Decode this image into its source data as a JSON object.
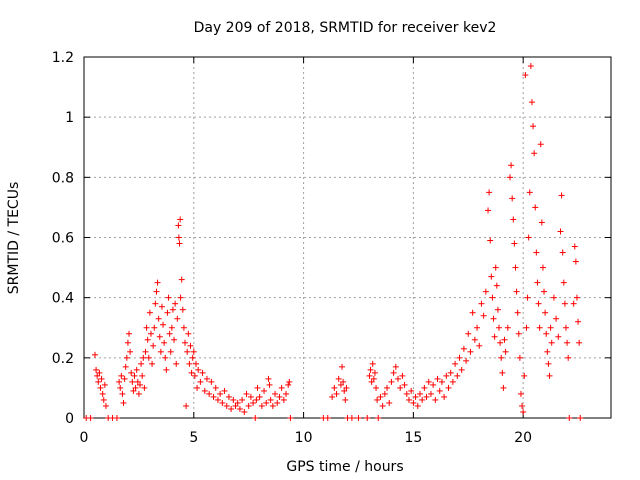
{
  "chart_data": {
    "type": "scatter",
    "title": "Day 209 of 2018, SRMTID for receiver kev2",
    "xlabel": "GPS time / hours",
    "ylabel": "SRMTID / TECUs",
    "xlim": [
      0,
      24
    ],
    "ylim": [
      0,
      1.2
    ],
    "xticks": [
      0,
      5,
      10,
      15,
      20
    ],
    "xtick_labels": [
      "0",
      "5",
      "10",
      "15",
      "20"
    ],
    "yticks": [
      0,
      0.2,
      0.4,
      0.6,
      0.8,
      1.0,
      1.2
    ],
    "ytick_labels": [
      "0",
      "0.2",
      "0.4",
      "0.6",
      "0.8",
      "1",
      "1.2"
    ],
    "grid": true,
    "marker": "+",
    "color": "#ff0000",
    "series": [
      {
        "name": "SRMTID",
        "points": [
          [
            0.1,
            0.0
          ],
          [
            0.3,
            0.0
          ],
          [
            0.5,
            0.21
          ],
          [
            0.55,
            0.16
          ],
          [
            0.6,
            0.14
          ],
          [
            0.65,
            0.12
          ],
          [
            0.7,
            0.15
          ],
          [
            0.75,
            0.1
          ],
          [
            0.8,
            0.13
          ],
          [
            0.85,
            0.08
          ],
          [
            0.9,
            0.06
          ],
          [
            0.95,
            0.11
          ],
          [
            1.0,
            0.04
          ],
          [
            1.1,
            0.0
          ],
          [
            1.3,
            0.0
          ],
          [
            1.5,
            0.0
          ],
          [
            1.6,
            0.12
          ],
          [
            1.65,
            0.1
          ],
          [
            1.7,
            0.14
          ],
          [
            1.75,
            0.08
          ],
          [
            1.8,
            0.05
          ],
          [
            1.85,
            0.13
          ],
          [
            1.9,
            0.17
          ],
          [
            1.95,
            0.2
          ],
          [
            2.0,
            0.25
          ],
          [
            2.05,
            0.28
          ],
          [
            2.1,
            0.22
          ],
          [
            2.15,
            0.15
          ],
          [
            2.2,
            0.12
          ],
          [
            2.25,
            0.09
          ],
          [
            2.3,
            0.14
          ],
          [
            2.35,
            0.1
          ],
          [
            2.4,
            0.16
          ],
          [
            2.45,
            0.12
          ],
          [
            2.5,
            0.08
          ],
          [
            2.55,
            0.11
          ],
          [
            2.6,
            0.18
          ],
          [
            2.65,
            0.14
          ],
          [
            2.7,
            0.2
          ],
          [
            2.75,
            0.1
          ],
          [
            2.8,
            0.22
          ],
          [
            2.85,
            0.3
          ],
          [
            2.9,
            0.26
          ],
          [
            2.95,
            0.2
          ],
          [
            3.0,
            0.35
          ],
          [
            3.05,
            0.28
          ],
          [
            3.1,
            0.18
          ],
          [
            3.15,
            0.24
          ],
          [
            3.2,
            0.3
          ],
          [
            3.25,
            0.38
          ],
          [
            3.3,
            0.42
          ],
          [
            3.35,
            0.45
          ],
          [
            3.4,
            0.33
          ],
          [
            3.45,
            0.27
          ],
          [
            3.5,
            0.22
          ],
          [
            3.55,
            0.37
          ],
          [
            3.6,
            0.31
          ],
          [
            3.65,
            0.25
          ],
          [
            3.7,
            0.2
          ],
          [
            3.75,
            0.16
          ],
          [
            3.8,
            0.35
          ],
          [
            3.85,
            0.4
          ],
          [
            3.9,
            0.28
          ],
          [
            3.95,
            0.22
          ],
          [
            4.0,
            0.3
          ],
          [
            4.05,
            0.36
          ],
          [
            4.1,
            0.26
          ],
          [
            4.15,
            0.38
          ],
          [
            4.2,
            0.18
          ],
          [
            4.25,
            0.33
          ],
          [
            4.3,
            0.64
          ],
          [
            4.32,
            0.6
          ],
          [
            4.35,
            0.58
          ],
          [
            4.38,
            0.66
          ],
          [
            4.4,
            0.4
          ],
          [
            4.45,
            0.46
          ],
          [
            4.5,
            0.36
          ],
          [
            4.55,
            0.3
          ],
          [
            4.6,
            0.25
          ],
          [
            4.65,
            0.04
          ],
          [
            4.7,
            0.22
          ],
          [
            4.75,
            0.28
          ],
          [
            4.8,
            0.18
          ],
          [
            4.85,
            0.24
          ],
          [
            4.9,
            0.15
          ],
          [
            4.95,
            0.2
          ],
          [
            5.0,
            0.22
          ],
          [
            5.05,
            0.14
          ],
          [
            5.1,
            0.18
          ],
          [
            5.15,
            0.1
          ],
          [
            5.2,
            0.16
          ],
          [
            5.3,
            0.12
          ],
          [
            5.4,
            0.15
          ],
          [
            5.5,
            0.09
          ],
          [
            5.6,
            0.13
          ],
          [
            5.7,
            0.08
          ],
          [
            5.8,
            0.12
          ],
          [
            5.9,
            0.07
          ],
          [
            6.0,
            0.1
          ],
          [
            6.1,
            0.06
          ],
          [
            6.2,
            0.08
          ],
          [
            6.3,
            0.05
          ],
          [
            6.4,
            0.09
          ],
          [
            6.5,
            0.04
          ],
          [
            6.6,
            0.07
          ],
          [
            6.7,
            0.03
          ],
          [
            6.8,
            0.06
          ],
          [
            6.9,
            0.04
          ],
          [
            7.0,
            0.05
          ],
          [
            7.1,
            0.03
          ],
          [
            7.2,
            0.06
          ],
          [
            7.3,
            0.02
          ],
          [
            7.4,
            0.08
          ],
          [
            7.5,
            0.04
          ],
          [
            7.6,
            0.07
          ],
          [
            7.7,
            0.05
          ],
          [
            7.8,
            0.0
          ],
          [
            7.85,
            0.06
          ],
          [
            7.9,
            0.1
          ],
          [
            8.0,
            0.07
          ],
          [
            8.1,
            0.04
          ],
          [
            8.2,
            0.09
          ],
          [
            8.3,
            0.05
          ],
          [
            8.4,
            0.13
          ],
          [
            8.45,
            0.11
          ],
          [
            8.5,
            0.06
          ],
          [
            8.6,
            0.04
          ],
          [
            8.7,
            0.08
          ],
          [
            8.8,
            0.05
          ],
          [
            8.9,
            0.07
          ],
          [
            9.0,
            0.1
          ],
          [
            9.1,
            0.06
          ],
          [
            9.2,
            0.08
          ],
          [
            9.3,
            0.11
          ],
          [
            9.35,
            0.12
          ],
          [
            9.4,
            0.0
          ],
          [
            10.9,
            0.0
          ],
          [
            11.1,
            0.0
          ],
          [
            11.3,
            0.07
          ],
          [
            11.4,
            0.1
          ],
          [
            11.5,
            0.08
          ],
          [
            11.6,
            0.13
          ],
          [
            11.7,
            0.11
          ],
          [
            11.75,
            0.17
          ],
          [
            11.8,
            0.12
          ],
          [
            11.85,
            0.09
          ],
          [
            11.9,
            0.06
          ],
          [
            11.95,
            0.1
          ],
          [
            12.0,
            0.0
          ],
          [
            12.2,
            0.0
          ],
          [
            12.5,
            0.0
          ],
          [
            12.9,
            0.0
          ],
          [
            13.0,
            0.14
          ],
          [
            13.05,
            0.16
          ],
          [
            13.1,
            0.12
          ],
          [
            13.15,
            0.18
          ],
          [
            13.2,
            0.13
          ],
          [
            13.25,
            0.15
          ],
          [
            13.3,
            0.1
          ],
          [
            13.35,
            0.06
          ],
          [
            13.4,
            0.0
          ],
          [
            13.5,
            0.07
          ],
          [
            13.6,
            0.04
          ],
          [
            13.7,
            0.08
          ],
          [
            13.8,
            0.1
          ],
          [
            13.9,
            0.05
          ],
          [
            14.0,
            0.12
          ],
          [
            14.1,
            0.15
          ],
          [
            14.2,
            0.17
          ],
          [
            14.3,
            0.13
          ],
          [
            14.4,
            0.1
          ],
          [
            14.5,
            0.14
          ],
          [
            14.6,
            0.11
          ],
          [
            14.7,
            0.08
          ],
          [
            14.8,
            0.06
          ],
          [
            14.9,
            0.09
          ],
          [
            15.0,
            0.05
          ],
          [
            15.1,
            0.07
          ],
          [
            15.2,
            0.04
          ],
          [
            15.3,
            0.08
          ],
          [
            15.4,
            0.06
          ],
          [
            15.5,
            0.1
          ],
          [
            15.6,
            0.07
          ],
          [
            15.7,
            0.12
          ],
          [
            15.8,
            0.08
          ],
          [
            15.9,
            0.11
          ],
          [
            16.0,
            0.06
          ],
          [
            16.1,
            0.13
          ],
          [
            16.2,
            0.09
          ],
          [
            16.3,
            0.12
          ],
          [
            16.4,
            0.07
          ],
          [
            16.5,
            0.14
          ],
          [
            16.6,
            0.1
          ],
          [
            16.7,
            0.15
          ],
          [
            16.8,
            0.12
          ],
          [
            16.9,
            0.18
          ],
          [
            17.0,
            0.14
          ],
          [
            17.1,
            0.2
          ],
          [
            17.2,
            0.16
          ],
          [
            17.3,
            0.23
          ],
          [
            17.4,
            0.19
          ],
          [
            17.5,
            0.28
          ],
          [
            17.6,
            0.22
          ],
          [
            17.7,
            0.35
          ],
          [
            17.8,
            0.26
          ],
          [
            17.9,
            0.3
          ],
          [
            18.0,
            0.24
          ],
          [
            18.1,
            0.38
          ],
          [
            18.2,
            0.34
          ],
          [
            18.3,
            0.42
          ],
          [
            18.4,
            0.69
          ],
          [
            18.45,
            0.75
          ],
          [
            18.5,
            0.59
          ],
          [
            18.55,
            0.47
          ],
          [
            18.6,
            0.4
          ],
          [
            18.65,
            0.33
          ],
          [
            18.7,
            0.27
          ],
          [
            18.75,
            0.5
          ],
          [
            18.8,
            0.44
          ],
          [
            18.85,
            0.36
          ],
          [
            18.9,
            0.3
          ],
          [
            18.95,
            0.25
          ],
          [
            19.0,
            0.2
          ],
          [
            19.05,
            0.15
          ],
          [
            19.1,
            0.1
          ],
          [
            19.15,
            0.26
          ],
          [
            19.2,
            0.22
          ],
          [
            19.3,
            0.3
          ],
          [
            19.4,
            0.8
          ],
          [
            19.45,
            0.84
          ],
          [
            19.5,
            0.73
          ],
          [
            19.55,
            0.66
          ],
          [
            19.6,
            0.58
          ],
          [
            19.65,
            0.5
          ],
          [
            19.7,
            0.42
          ],
          [
            19.75,
            0.35
          ],
          [
            19.8,
            0.28
          ],
          [
            19.85,
            0.2
          ],
          [
            19.9,
            0.08
          ],
          [
            19.95,
            0.04
          ],
          [
            20.0,
            0.02
          ],
          [
            20.05,
            0.14
          ],
          [
            20.1,
            1.14
          ],
          [
            20.15,
            0.3
          ],
          [
            20.2,
            0.4
          ],
          [
            20.25,
            0.6
          ],
          [
            20.3,
            0.75
          ],
          [
            20.35,
            1.17
          ],
          [
            20.4,
            1.05
          ],
          [
            20.45,
            0.97
          ],
          [
            20.5,
            0.88
          ],
          [
            20.55,
            0.7
          ],
          [
            20.6,
            0.55
          ],
          [
            20.65,
            0.45
          ],
          [
            20.7,
            0.38
          ],
          [
            20.75,
            0.3
          ],
          [
            20.8,
            0.91
          ],
          [
            20.85,
            0.65
          ],
          [
            20.9,
            0.5
          ],
          [
            20.95,
            0.42
          ],
          [
            21.0,
            0.35
          ],
          [
            21.05,
            0.28
          ],
          [
            21.1,
            0.22
          ],
          [
            21.15,
            0.18
          ],
          [
            21.2,
            0.14
          ],
          [
            21.25,
            0.3
          ],
          [
            21.3,
            0.25
          ],
          [
            21.4,
            0.4
          ],
          [
            21.5,
            0.33
          ],
          [
            21.6,
            0.27
          ],
          [
            21.7,
            0.62
          ],
          [
            21.75,
            0.74
          ],
          [
            21.8,
            0.55
          ],
          [
            21.85,
            0.45
          ],
          [
            21.9,
            0.38
          ],
          [
            21.95,
            0.3
          ],
          [
            22.0,
            0.25
          ],
          [
            22.05,
            0.2
          ],
          [
            22.1,
            0.0
          ],
          [
            22.3,
            0.38
          ],
          [
            22.35,
            0.57
          ],
          [
            22.4,
            0.52
          ],
          [
            22.45,
            0.4
          ],
          [
            22.5,
            0.32
          ],
          [
            22.55,
            0.25
          ],
          [
            22.6,
            0.0
          ]
        ]
      }
    ]
  }
}
